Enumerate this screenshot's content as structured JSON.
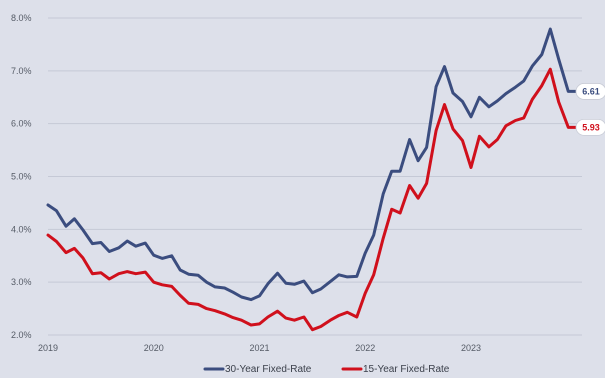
{
  "chart_data": {
    "type": "line",
    "title": "",
    "xlabel": "",
    "ylabel": "",
    "x_ticks": [
      "2019",
      "2020",
      "2021",
      "2022",
      "2023"
    ],
    "y_ticks": [
      "2.0%",
      "3.0%",
      "4.0%",
      "5.0%",
      "6.0%",
      "7.0%",
      "8.0%"
    ],
    "ylim": [
      2.0,
      8.0
    ],
    "xlim": [
      2019.0,
      2024.05
    ],
    "grid": true,
    "legend_position": "bottom-center",
    "series": [
      {
        "name": "30-Year Fixed-Rate",
        "color": "#3b4d7f",
        "end_label": "6.61",
        "x": [
          2019.0,
          2019.08,
          2019.17,
          2019.25,
          2019.33,
          2019.42,
          2019.5,
          2019.58,
          2019.67,
          2019.75,
          2019.83,
          2019.92,
          2020.0,
          2020.08,
          2020.17,
          2020.25,
          2020.33,
          2020.42,
          2020.5,
          2020.58,
          2020.67,
          2020.75,
          2020.83,
          2020.92,
          2021.0,
          2021.08,
          2021.17,
          2021.25,
          2021.33,
          2021.42,
          2021.5,
          2021.58,
          2021.67,
          2021.75,
          2021.83,
          2021.92,
          2022.0,
          2022.08,
          2022.17,
          2022.25,
          2022.33,
          2022.42,
          2022.5,
          2022.58,
          2022.67,
          2022.75,
          2022.83,
          2022.92,
          2023.0,
          2023.08,
          2023.17,
          2023.25,
          2023.33,
          2023.42,
          2023.5,
          2023.58,
          2023.67,
          2023.75,
          2023.83,
          2023.92,
          2024.0
        ],
        "values": [
          4.46,
          4.35,
          4.06,
          4.2,
          3.99,
          3.73,
          3.75,
          3.58,
          3.65,
          3.78,
          3.68,
          3.74,
          3.51,
          3.45,
          3.5,
          3.23,
          3.15,
          3.13,
          3.0,
          2.91,
          2.89,
          2.81,
          2.72,
          2.67,
          2.74,
          2.97,
          3.17,
          2.98,
          2.96,
          3.02,
          2.8,
          2.87,
          3.01,
          3.14,
          3.1,
          3.11,
          3.55,
          3.89,
          4.67,
          5.1,
          5.1,
          5.7,
          5.3,
          5.55,
          6.7,
          7.08,
          6.58,
          6.42,
          6.13,
          6.5,
          6.32,
          6.43,
          6.57,
          6.69,
          6.81,
          7.09,
          7.31,
          7.79,
          7.22,
          6.61,
          6.61
        ]
      },
      {
        "name": "15-Year Fixed-Rate",
        "color": "#d0101c",
        "end_label": "5.93",
        "x": [
          2019.0,
          2019.08,
          2019.17,
          2019.25,
          2019.33,
          2019.42,
          2019.5,
          2019.58,
          2019.67,
          2019.75,
          2019.83,
          2019.92,
          2020.0,
          2020.08,
          2020.17,
          2020.25,
          2020.33,
          2020.42,
          2020.5,
          2020.58,
          2020.67,
          2020.75,
          2020.83,
          2020.92,
          2021.0,
          2021.08,
          2021.17,
          2021.25,
          2021.33,
          2021.42,
          2021.5,
          2021.58,
          2021.67,
          2021.75,
          2021.83,
          2021.92,
          2022.0,
          2022.08,
          2022.17,
          2022.25,
          2022.33,
          2022.42,
          2022.5,
          2022.58,
          2022.67,
          2022.75,
          2022.83,
          2022.92,
          2023.0,
          2023.08,
          2023.17,
          2023.25,
          2023.33,
          2023.42,
          2023.5,
          2023.58,
          2023.67,
          2023.75,
          2023.83,
          2023.92,
          2024.0
        ],
        "values": [
          3.89,
          3.77,
          3.56,
          3.64,
          3.46,
          3.16,
          3.18,
          3.06,
          3.16,
          3.2,
          3.16,
          3.19,
          3.0,
          2.95,
          2.92,
          2.75,
          2.6,
          2.58,
          2.5,
          2.46,
          2.4,
          2.33,
          2.28,
          2.19,
          2.21,
          2.34,
          2.45,
          2.32,
          2.28,
          2.34,
          2.1,
          2.16,
          2.28,
          2.37,
          2.43,
          2.34,
          2.79,
          3.14,
          3.83,
          4.38,
          4.31,
          4.83,
          4.59,
          4.87,
          5.87,
          6.36,
          5.9,
          5.68,
          5.17,
          5.76,
          5.56,
          5.7,
          5.96,
          6.06,
          6.11,
          6.46,
          6.72,
          7.03,
          6.41,
          5.93,
          5.93
        ]
      }
    ]
  }
}
